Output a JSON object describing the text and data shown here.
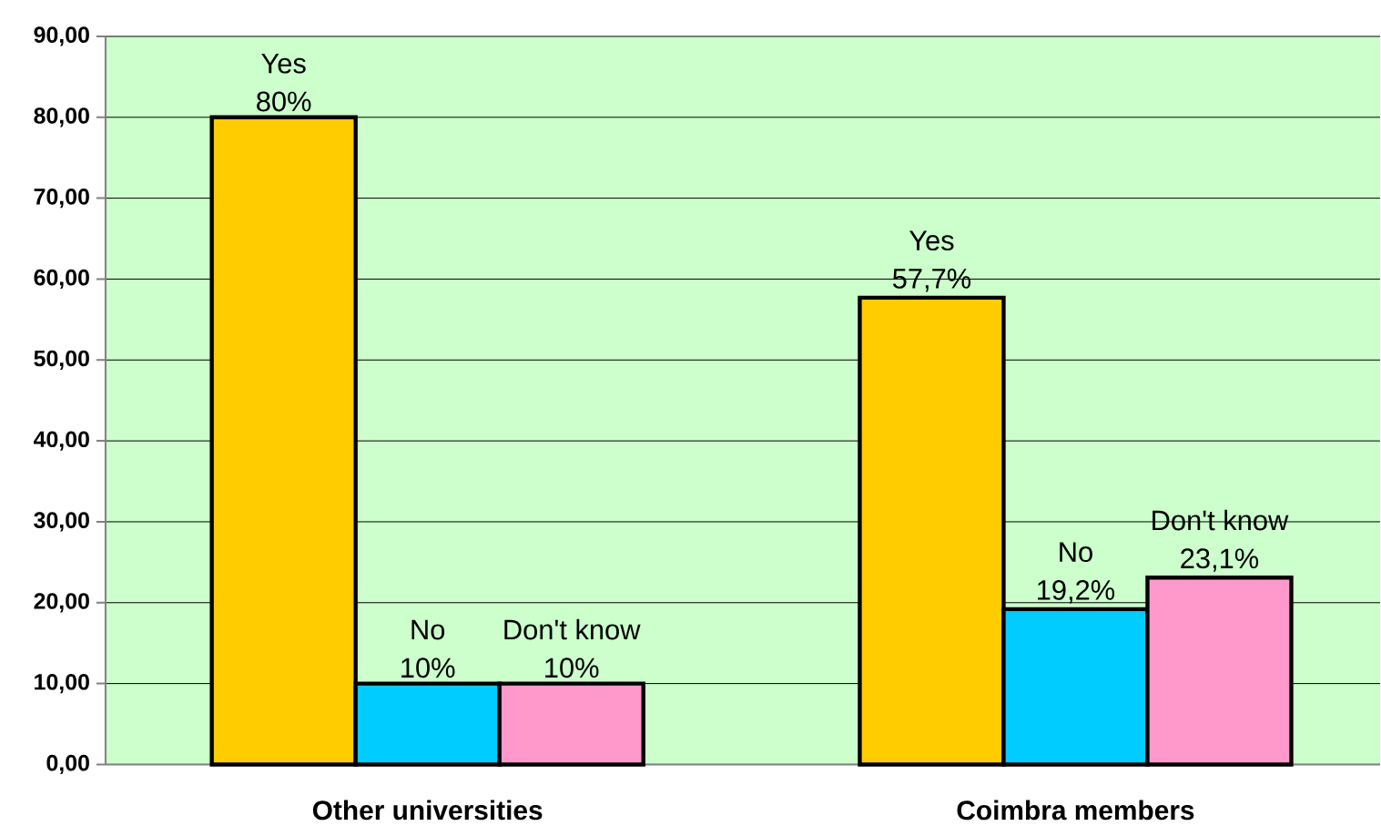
{
  "chart_data": {
    "type": "bar",
    "categories": [
      "Other universities",
      "Coimbra members"
    ],
    "series": [
      {
        "name": "Yes",
        "color": "#ffcc00",
        "values": [
          80,
          57.7
        ],
        "value_labels": [
          "80%",
          "57,7%"
        ]
      },
      {
        "name": "No",
        "color": "#00ccff",
        "values": [
          10,
          19.2
        ],
        "value_labels": [
          "10%",
          "19,2%"
        ]
      },
      {
        "name": "Don't know",
        "color": "#ff99cc",
        "values": [
          10,
          23.1
        ],
        "value_labels": [
          "10%",
          "23,1%"
        ]
      }
    ],
    "ylim": [
      0,
      90
    ],
    "yticks": [
      {
        "value": 0,
        "label": "0,00"
      },
      {
        "value": 10,
        "label": "10,00"
      },
      {
        "value": 20,
        "label": "20,00"
      },
      {
        "value": 30,
        "label": "30,00"
      },
      {
        "value": 40,
        "label": "40,00"
      },
      {
        "value": 50,
        "label": "50,00"
      },
      {
        "value": 60,
        "label": "60,00"
      },
      {
        "value": 70,
        "label": "70,00"
      },
      {
        "value": 80,
        "label": "80,00"
      },
      {
        "value": 90,
        "label": "90,00"
      }
    ],
    "grid": "y"
  }
}
